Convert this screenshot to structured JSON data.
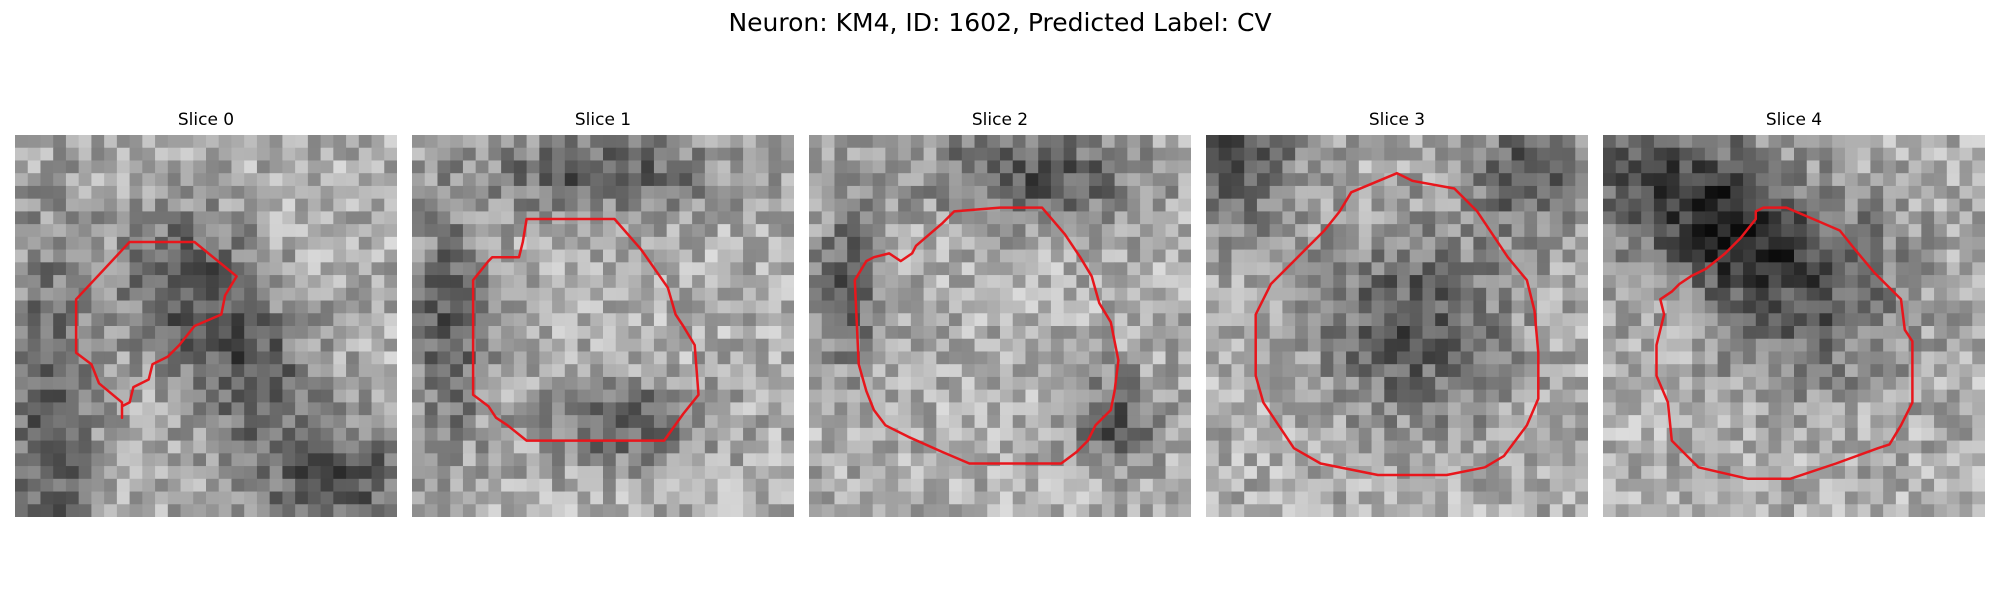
{
  "figure": {
    "title": "Neuron: KM4, ID: 1602, Predicted Label: CV"
  },
  "contour_color": "#e8161c",
  "panels": [
    {
      "title": "Slice 0",
      "seed": 11,
      "dark_regions": [
        [
          0.45,
          0.38,
          0.17,
          0.2
        ],
        [
          0.62,
          0.62,
          0.16,
          0.18
        ],
        [
          0.1,
          0.75,
          0.12,
          0.5
        ],
        [
          0.85,
          0.9,
          0.25,
          0.15
        ]
      ],
      "contour": [
        [
          0.3,
          0.28
        ],
        [
          0.47,
          0.28
        ],
        [
          0.58,
          0.37
        ],
        [
          0.55,
          0.42
        ],
        [
          0.54,
          0.47
        ],
        [
          0.47,
          0.5
        ],
        [
          0.43,
          0.55
        ],
        [
          0.4,
          0.58
        ],
        [
          0.36,
          0.6
        ],
        [
          0.35,
          0.64
        ],
        [
          0.31,
          0.66
        ],
        [
          0.3,
          0.7
        ],
        [
          0.28,
          0.71
        ],
        [
          0.28,
          0.74
        ],
        [
          0.28,
          0.7
        ],
        [
          0.22,
          0.65
        ],
        [
          0.2,
          0.6
        ],
        [
          0.16,
          0.57
        ],
        [
          0.16,
          0.43
        ]
      ]
    },
    {
      "title": "Slice 1",
      "seed": 23,
      "dark_regions": [
        [
          0.5,
          0.1,
          0.3,
          0.1
        ],
        [
          0.55,
          0.75,
          0.2,
          0.1
        ],
        [
          0.1,
          0.5,
          0.1,
          0.3
        ]
      ],
      "contour": [
        [
          0.3,
          0.22
        ],
        [
          0.53,
          0.22
        ],
        [
          0.6,
          0.3
        ],
        [
          0.67,
          0.4
        ],
        [
          0.69,
          0.47
        ],
        [
          0.71,
          0.5
        ],
        [
          0.74,
          0.55
        ],
        [
          0.75,
          0.68
        ],
        [
          0.71,
          0.73
        ],
        [
          0.66,
          0.8
        ],
        [
          0.62,
          0.8
        ],
        [
          0.3,
          0.8
        ],
        [
          0.25,
          0.76
        ],
        [
          0.22,
          0.74
        ],
        [
          0.2,
          0.71
        ],
        [
          0.16,
          0.68
        ],
        [
          0.16,
          0.38
        ],
        [
          0.2,
          0.33
        ],
        [
          0.21,
          0.32
        ],
        [
          0.28,
          0.32
        ],
        [
          0.29,
          0.28
        ]
      ]
    },
    {
      "title": "Slice 2",
      "seed": 37,
      "dark_regions": [
        [
          0.6,
          0.1,
          0.3,
          0.12
        ],
        [
          0.8,
          0.75,
          0.12,
          0.12
        ],
        [
          0.1,
          0.4,
          0.1,
          0.2
        ]
      ],
      "contour": [
        [
          0.35,
          0.23
        ],
        [
          0.38,
          0.2
        ],
        [
          0.5,
          0.19
        ],
        [
          0.61,
          0.19
        ],
        [
          0.67,
          0.26
        ],
        [
          0.71,
          0.32
        ],
        [
          0.74,
          0.37
        ],
        [
          0.76,
          0.44
        ],
        [
          0.79,
          0.49
        ],
        [
          0.81,
          0.59
        ],
        [
          0.8,
          0.67
        ],
        [
          0.79,
          0.72
        ],
        [
          0.75,
          0.76
        ],
        [
          0.73,
          0.8
        ],
        [
          0.7,
          0.83
        ],
        [
          0.66,
          0.86
        ],
        [
          0.42,
          0.86
        ],
        [
          0.35,
          0.83
        ],
        [
          0.26,
          0.79
        ],
        [
          0.2,
          0.76
        ],
        [
          0.17,
          0.72
        ],
        [
          0.15,
          0.67
        ],
        [
          0.13,
          0.6
        ],
        [
          0.12,
          0.38
        ],
        [
          0.15,
          0.33
        ],
        [
          0.17,
          0.32
        ],
        [
          0.21,
          0.31
        ],
        [
          0.24,
          0.33
        ],
        [
          0.27,
          0.31
        ],
        [
          0.28,
          0.29
        ]
      ]
    },
    {
      "title": "Slice 3",
      "seed": 53,
      "dark_regions": [
        [
          0.05,
          0.05,
          0.2,
          0.2
        ],
        [
          0.55,
          0.5,
          0.25,
          0.25
        ],
        [
          0.85,
          0.1,
          0.15,
          0.15
        ]
      ],
      "contour": [
        [
          0.38,
          0.15
        ],
        [
          0.5,
          0.1
        ],
        [
          0.54,
          0.12
        ],
        [
          0.65,
          0.14
        ],
        [
          0.71,
          0.2
        ],
        [
          0.75,
          0.26
        ],
        [
          0.79,
          0.32
        ],
        [
          0.84,
          0.38
        ],
        [
          0.86,
          0.46
        ],
        [
          0.87,
          0.57
        ],
        [
          0.87,
          0.69
        ],
        [
          0.84,
          0.76
        ],
        [
          0.81,
          0.8
        ],
        [
          0.78,
          0.84
        ],
        [
          0.73,
          0.87
        ],
        [
          0.63,
          0.89
        ],
        [
          0.45,
          0.89
        ],
        [
          0.3,
          0.86
        ],
        [
          0.23,
          0.82
        ],
        [
          0.19,
          0.76
        ],
        [
          0.15,
          0.7
        ],
        [
          0.13,
          0.63
        ],
        [
          0.13,
          0.47
        ],
        [
          0.17,
          0.39
        ],
        [
          0.21,
          0.35
        ],
        [
          0.27,
          0.29
        ],
        [
          0.31,
          0.25
        ],
        [
          0.35,
          0.2
        ]
      ]
    },
    {
      "title": "Slice 4",
      "seed": 71,
      "dark_regions": [
        [
          0.15,
          0.12,
          0.25,
          0.22
        ],
        [
          0.35,
          0.25,
          0.15,
          0.15
        ],
        [
          0.55,
          0.4,
          0.25,
          0.25
        ]
      ],
      "contour": [
        [
          0.4,
          0.22
        ],
        [
          0.4,
          0.2
        ],
        [
          0.42,
          0.19
        ],
        [
          0.48,
          0.19
        ],
        [
          0.55,
          0.22
        ],
        [
          0.62,
          0.25
        ],
        [
          0.66,
          0.3
        ],
        [
          0.71,
          0.36
        ],
        [
          0.78,
          0.43
        ],
        [
          0.79,
          0.51
        ],
        [
          0.81,
          0.54
        ],
        [
          0.81,
          0.7
        ],
        [
          0.78,
          0.76
        ],
        [
          0.75,
          0.81
        ],
        [
          0.72,
          0.82
        ],
        [
          0.61,
          0.86
        ],
        [
          0.49,
          0.9
        ],
        [
          0.38,
          0.9
        ],
        [
          0.25,
          0.87
        ],
        [
          0.22,
          0.84
        ],
        [
          0.18,
          0.8
        ],
        [
          0.17,
          0.7
        ],
        [
          0.14,
          0.63
        ],
        [
          0.14,
          0.55
        ],
        [
          0.16,
          0.47
        ],
        [
          0.15,
          0.43
        ],
        [
          0.18,
          0.41
        ],
        [
          0.2,
          0.39
        ],
        [
          0.23,
          0.37
        ],
        [
          0.27,
          0.35
        ],
        [
          0.32,
          0.31
        ],
        [
          0.36,
          0.27
        ]
      ]
    }
  ]
}
